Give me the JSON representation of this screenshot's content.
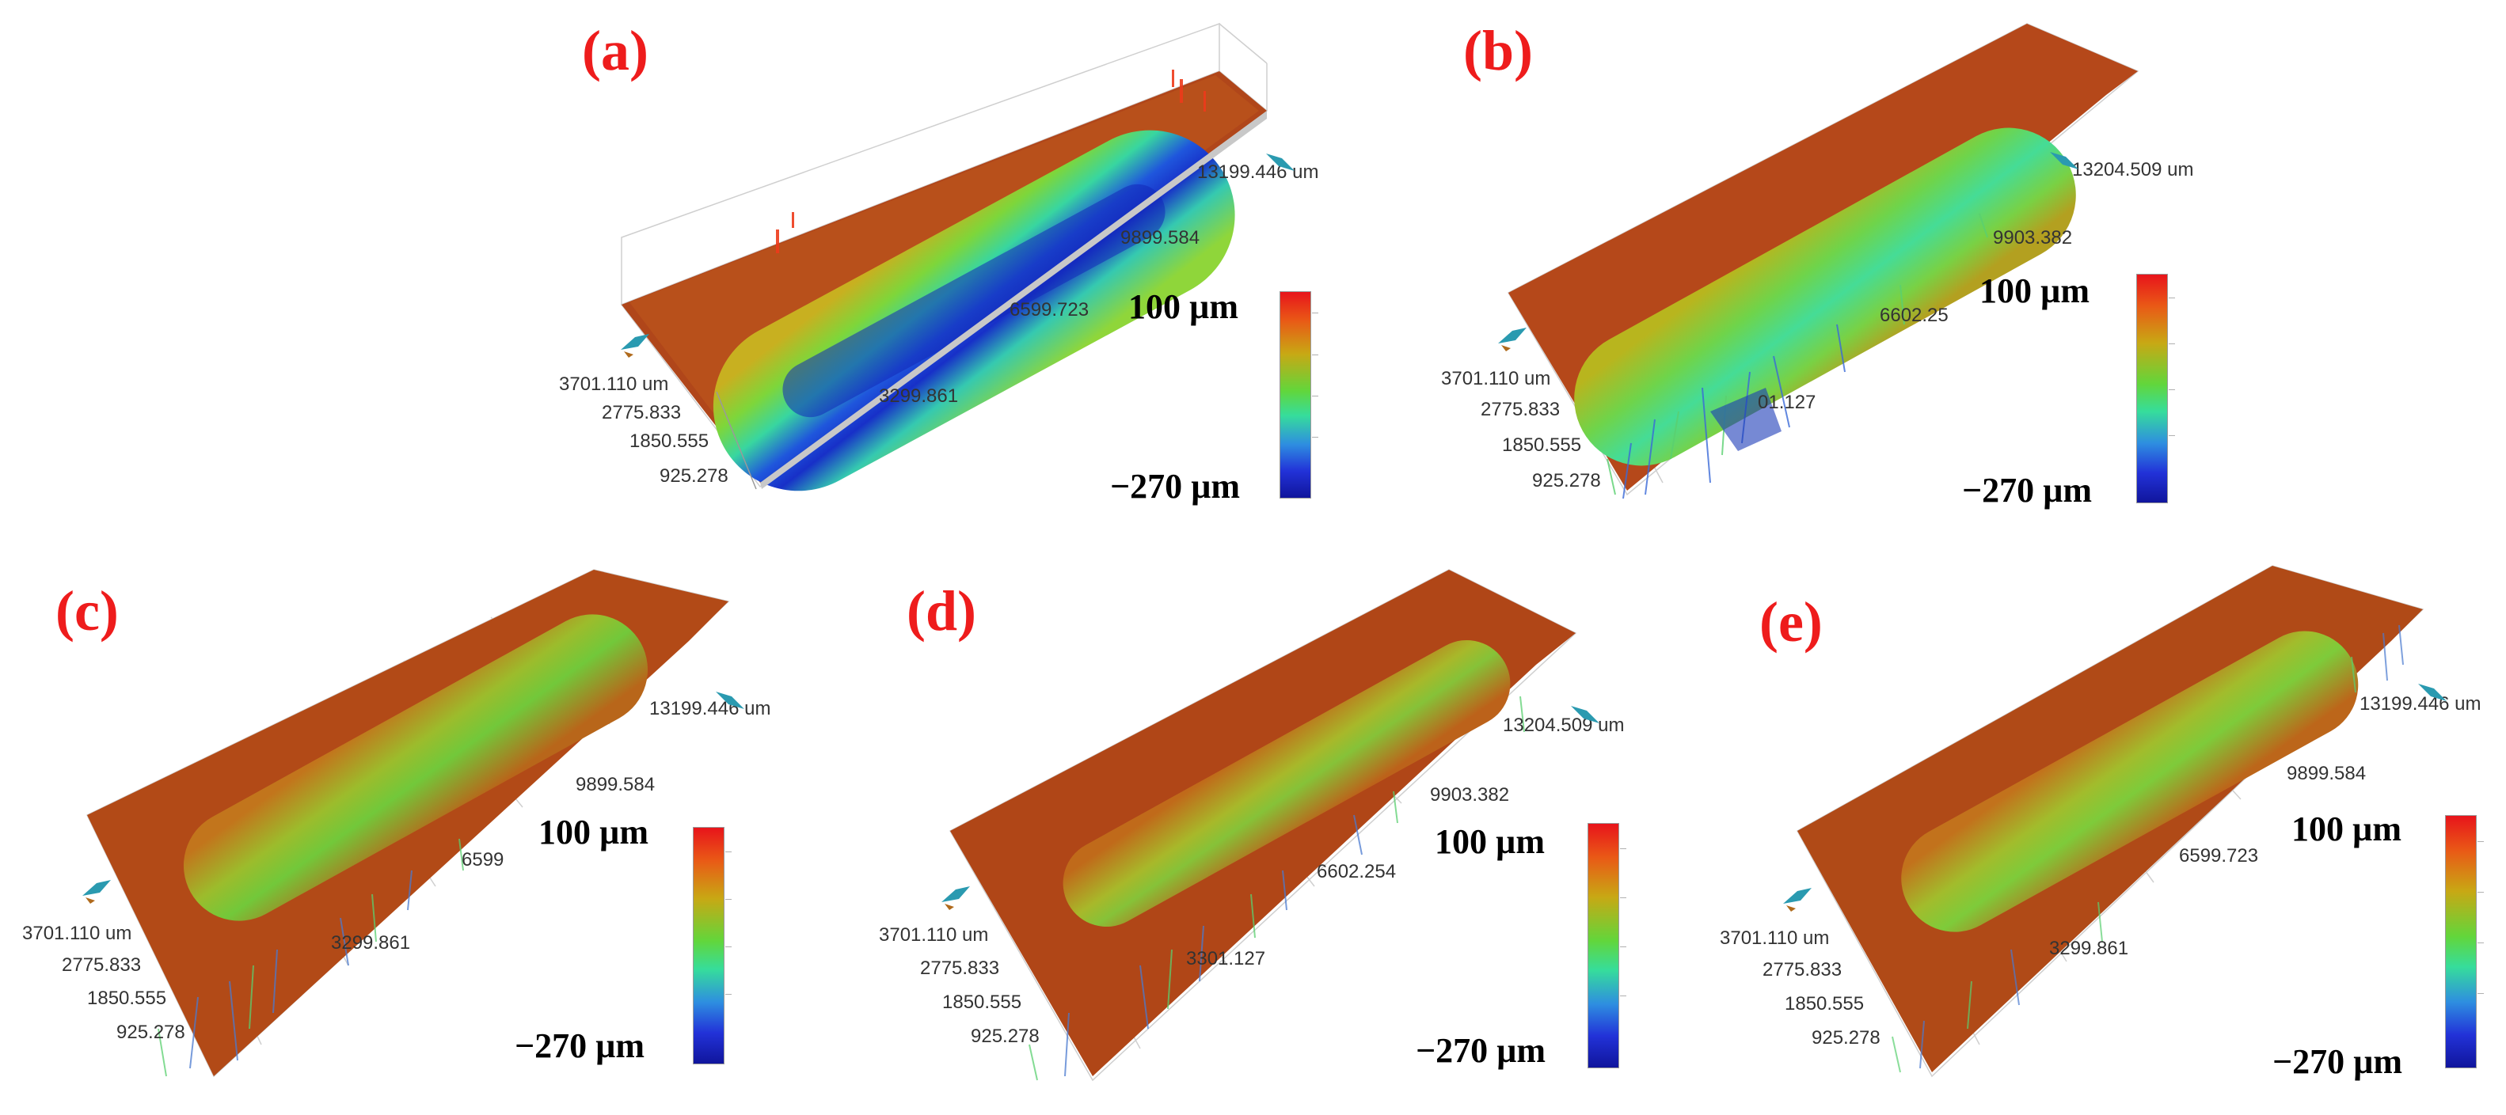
{
  "panels": [
    {
      "label": "(a)",
      "scale_max": "100 µm",
      "scale_min": "−270 µm",
      "x_ticks": [
        "13199.446 um",
        "9899.584",
        "6599.723",
        "3299.861"
      ],
      "y_ticks": [
        "3701.110 um",
        "2775.833",
        "1850.555",
        "925.278"
      ]
    },
    {
      "label": "(b)",
      "scale_max": "100 µm",
      "scale_min": "−270 µm",
      "x_ticks": [
        "13204.509 um",
        "9903.382",
        "6602.25",
        "01.127"
      ],
      "y_ticks": [
        "3701.110 um",
        "2775.833",
        "1850.555",
        "925.278"
      ]
    },
    {
      "label": "(c)",
      "scale_max": "100 µm",
      "scale_min": "−270 µm",
      "x_ticks": [
        "13199.446 um",
        "9899.584",
        "6599",
        "3299.861"
      ],
      "y_ticks": [
        "3701.110 um",
        "2775.833",
        "1850.555",
        "925.278"
      ]
    },
    {
      "label": "(d)",
      "scale_max": "100 µm",
      "scale_min": "−270 µm",
      "x_ticks": [
        "13204.509 um",
        "9903.382",
        "6602.254",
        "3301.127"
      ],
      "y_ticks": [
        "3701.110 um",
        "2775.833",
        "1850.555",
        "925.278"
      ]
    },
    {
      "label": "(e)",
      "scale_max": "100 µm",
      "scale_min": "−270 µm",
      "x_ticks": [
        "13199.446 um",
        "9899.584",
        "6599.723",
        "3299.861"
      ],
      "y_ticks": [
        "3701.110 um",
        "2775.833",
        "1850.555",
        "925.278"
      ]
    }
  ],
  "colors": {
    "label": "#ee1c1c",
    "colormap": [
      "#e8141b",
      "#e95a16",
      "#c8a814",
      "#62d63b",
      "#36dd9b",
      "#2e8ee0",
      "#2232d8",
      "#10159c"
    ],
    "surface": "#b44a17",
    "groove_deep": "#1f3fd0"
  },
  "icons": [
    "orientation-gizmo-icon"
  ]
}
